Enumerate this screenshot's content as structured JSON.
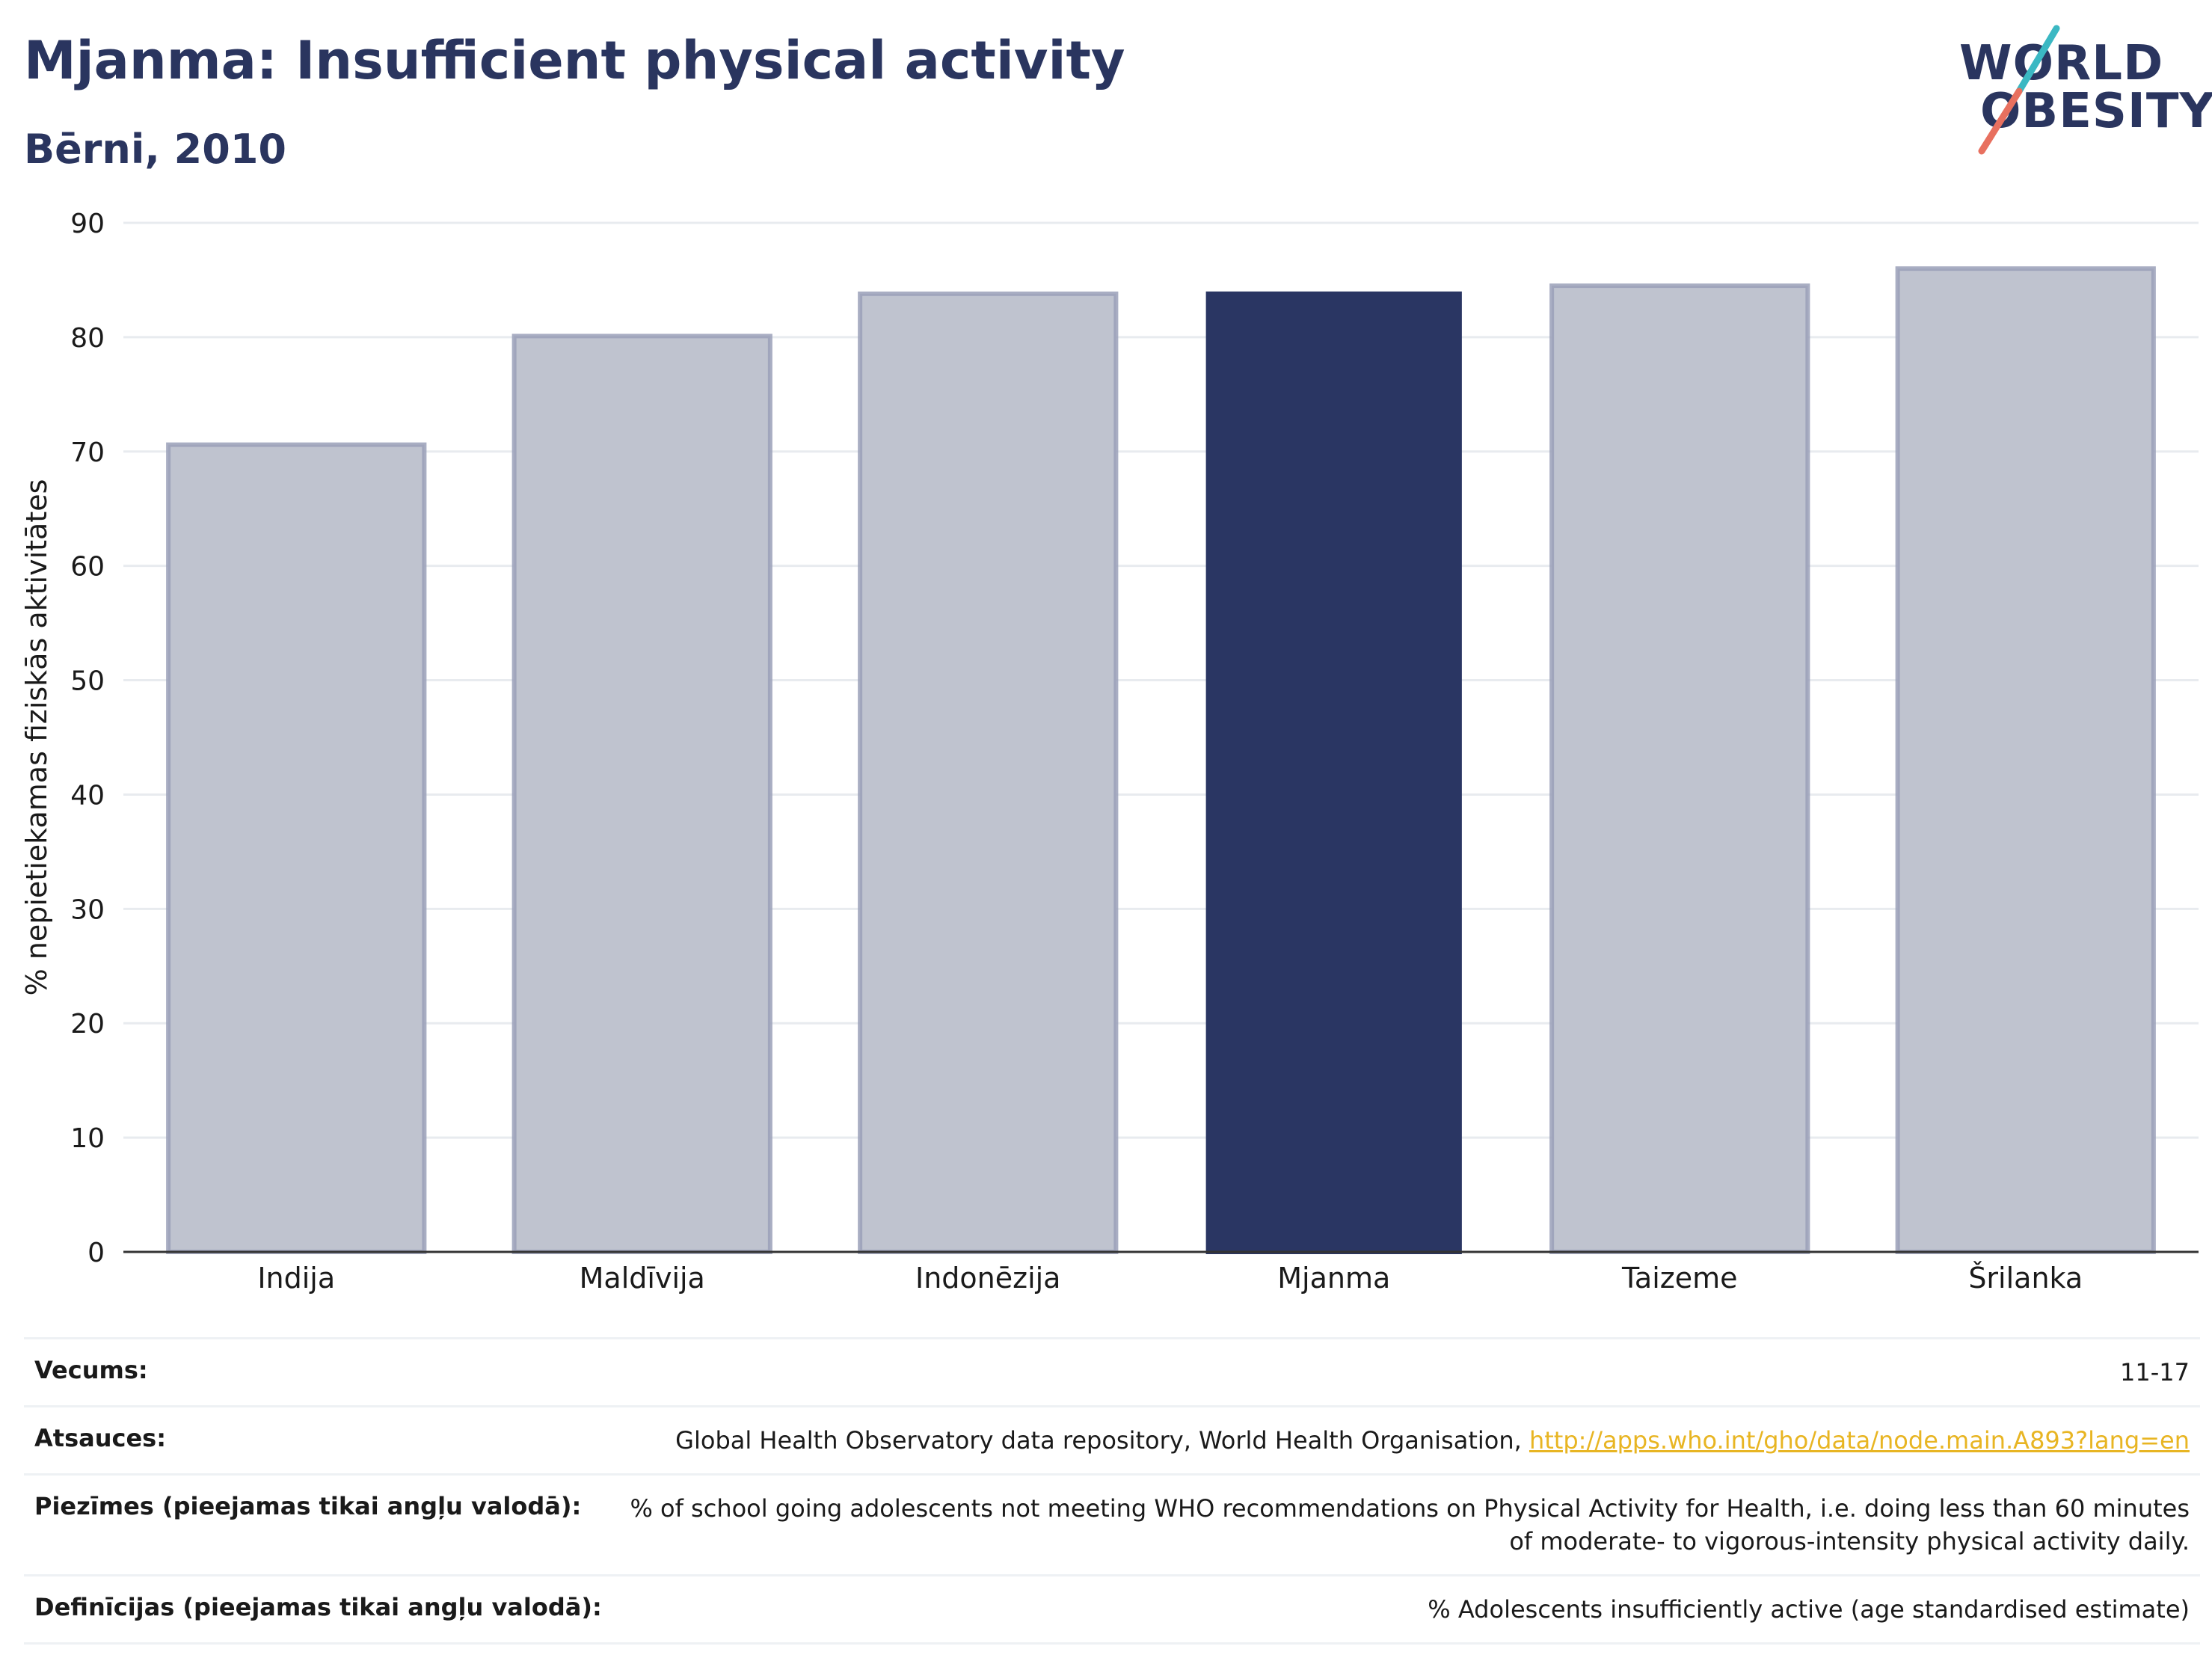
{
  "header": {
    "title": "Mjanma: Insufficient physical activity",
    "subtitle": "Bērni, 2010"
  },
  "logo": {
    "line1": "WORLD",
    "line2": "OBESITY"
  },
  "chart_data": {
    "type": "bar",
    "categories": [
      "Indija",
      "Maldīvija",
      "Indonēzija",
      "Mjanma",
      "Taizeme",
      "Šrilanka"
    ],
    "values": [
      70.6,
      80.1,
      83.8,
      84.0,
      84.5,
      86.0
    ],
    "highlight": "Mjanma",
    "ylabel": "% nepietiekamas fiziskās aktivitātes",
    "xlabel": "",
    "ylim": [
      0,
      90
    ],
    "yticks": [
      0,
      10,
      20,
      30,
      40,
      50,
      60,
      70,
      80,
      90
    ],
    "grid": true,
    "colors": {
      "highlight": "#2a3663",
      "other_fill": "#bfc3cf",
      "other_stroke": "#9aa0b8"
    }
  },
  "info": {
    "age_label": "Vecums:",
    "age_value": "11-17",
    "sources_label": "Atsauces:",
    "sources_text": "Global Health Observatory data repository, World Health Organisation, ",
    "sources_link": "http://apps.who.int/gho/data/node.main.A893?lang=en",
    "notes_label": "Piezīmes (pieejamas tikai angļu valodā):",
    "notes_text": "% of school going adolescents not meeting WHO recommendations on Physical Activity for Health, i.e. doing less than 60 minutes of moderate- to vigorous-intensity physical activity daily.",
    "definitions_label": "Definīcijas (pieejamas tikai angļu valodā):",
    "definitions_text": "% Adolescents insufficiently active (age standardised estimate)"
  }
}
